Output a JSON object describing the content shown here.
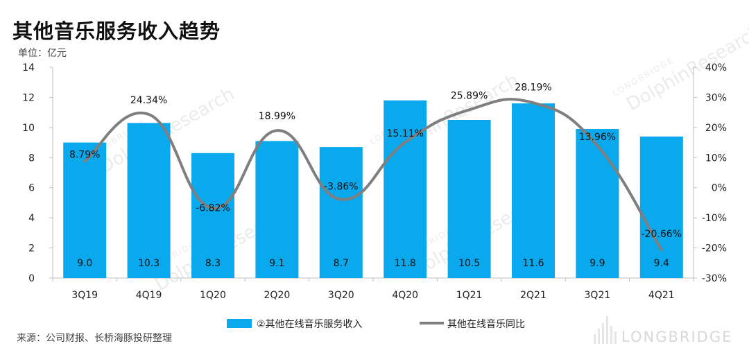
{
  "header": {
    "title": "其他音乐服务收入趋势",
    "unit": "单位：亿元"
  },
  "footer": {
    "source": "来源：公司财报、长桥海豚投研整理",
    "watermark": "LONGBRIDGE"
  },
  "chart_data": {
    "type": "bar",
    "categories": [
      "3Q19",
      "4Q19",
      "1Q20",
      "2Q20",
      "3Q20",
      "4Q20",
      "1Q21",
      "2Q21",
      "3Q21",
      "4Q21"
    ],
    "series": [
      {
        "name": "②其他在线音乐服务收入",
        "type": "bar",
        "axis": "left",
        "values": [
          9.0,
          10.3,
          8.3,
          9.1,
          8.7,
          11.8,
          10.5,
          11.6,
          9.9,
          9.4
        ],
        "labels": [
          "9.0",
          "10.3",
          "8.3",
          "9.1",
          "8.7",
          "11.8",
          "10.5",
          "11.6",
          "9.9",
          "9.4"
        ],
        "color": "#0aa8ec"
      },
      {
        "name": "其他在线音乐同比",
        "type": "line",
        "axis": "right",
        "values": [
          8.79,
          24.34,
          -6.82,
          18.99,
          -3.86,
          15.11,
          25.89,
          28.19,
          13.96,
          -20.66
        ],
        "labels": [
          "8.79%",
          "24.34%",
          "-6.82%",
          "18.99%",
          "-3.86%",
          "15.11%",
          "25.89%",
          "28.19%",
          "13.96%",
          "-20.66%"
        ],
        "color": "#7f7f7f"
      }
    ],
    "y_left": {
      "min": 0,
      "max": 14,
      "ticks": [
        "0",
        "2",
        "4",
        "6",
        "8",
        "10",
        "12",
        "14"
      ]
    },
    "y_right": {
      "min": -30,
      "max": 40,
      "ticks": [
        "-30%",
        "-20%",
        "-10%",
        "0%",
        "10%",
        "20%",
        "30%",
        "40%"
      ]
    },
    "grid": false,
    "legend_position": "bottom",
    "watermark_text": "DolphinResearch",
    "watermark_small": "LONGBRIDGE"
  }
}
